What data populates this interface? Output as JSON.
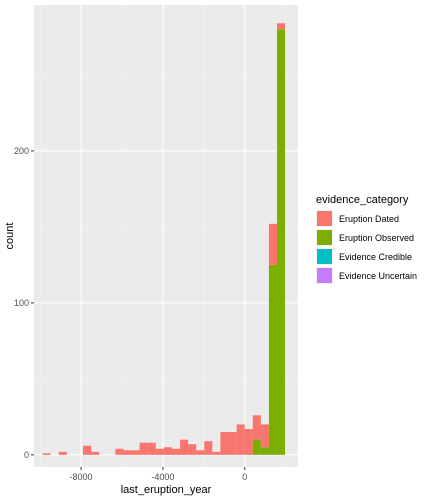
{
  "chart_data": {
    "type": "bar",
    "subtype": "stacked-histogram",
    "xlabel": "last_eruption_year",
    "ylabel": "count",
    "xlim": [
      -10300,
      2600
    ],
    "ylim": [
      -8,
      296
    ],
    "x_ticks": [
      -8000,
      -4000,
      0
    ],
    "x_tick_labels": [
      "-8000",
      "-4000",
      "0"
    ],
    "y_ticks": [
      0,
      100,
      200
    ],
    "y_tick_labels": [
      "0",
      "100",
      "200"
    ],
    "grid": true,
    "legend": {
      "title": "evidence_category",
      "position": "right",
      "items": [
        {
          "label": "Eruption Dated",
          "color": "#F8766D"
        },
        {
          "label": "Eruption Observed",
          "color": "#7CAE00"
        },
        {
          "label": "Evidence Credible",
          "color": "#00BFC4"
        },
        {
          "label": "Evidence Uncertain",
          "color": "#C77CFF"
        }
      ]
    },
    "bins": {
      "start": -9880,
      "width": 395,
      "count": 30
    },
    "series": [
      {
        "name": "Eruption Dated",
        "color": "#F8766D",
        "values": [
          1,
          0,
          2,
          0,
          0,
          6,
          2,
          0,
          0,
          4,
          3,
          3,
          8,
          8,
          4,
          5,
          4,
          10,
          7,
          3,
          9,
          2,
          15,
          15,
          20,
          17,
          16,
          15,
          27,
          4
        ]
      },
      {
        "name": "Eruption Observed",
        "color": "#7CAE00",
        "values": [
          0,
          0,
          0,
          0,
          0,
          0,
          0,
          0,
          0,
          0,
          0,
          0,
          0,
          0,
          0,
          0,
          0,
          0,
          0,
          0,
          0,
          0,
          0,
          0,
          0,
          0,
          10,
          5,
          125,
          280
        ]
      },
      {
        "name": "Evidence Credible",
        "color": "#00BFC4",
        "values": [
          0,
          0,
          0,
          0,
          0,
          0,
          0,
          0,
          0,
          0,
          0,
          0,
          0,
          0,
          0,
          0,
          0,
          0,
          0,
          0,
          0,
          0,
          0,
          0,
          0,
          0,
          0,
          0,
          0,
          0
        ]
      },
      {
        "name": "Evidence Uncertain",
        "color": "#C77CFF",
        "values": [
          0,
          0,
          0,
          0,
          0,
          0,
          0,
          0,
          0,
          0,
          0,
          0,
          0,
          0,
          0,
          0,
          0,
          0,
          0,
          0,
          0,
          0,
          0,
          0,
          0,
          0,
          0,
          0,
          0,
          0
        ]
      }
    ]
  }
}
